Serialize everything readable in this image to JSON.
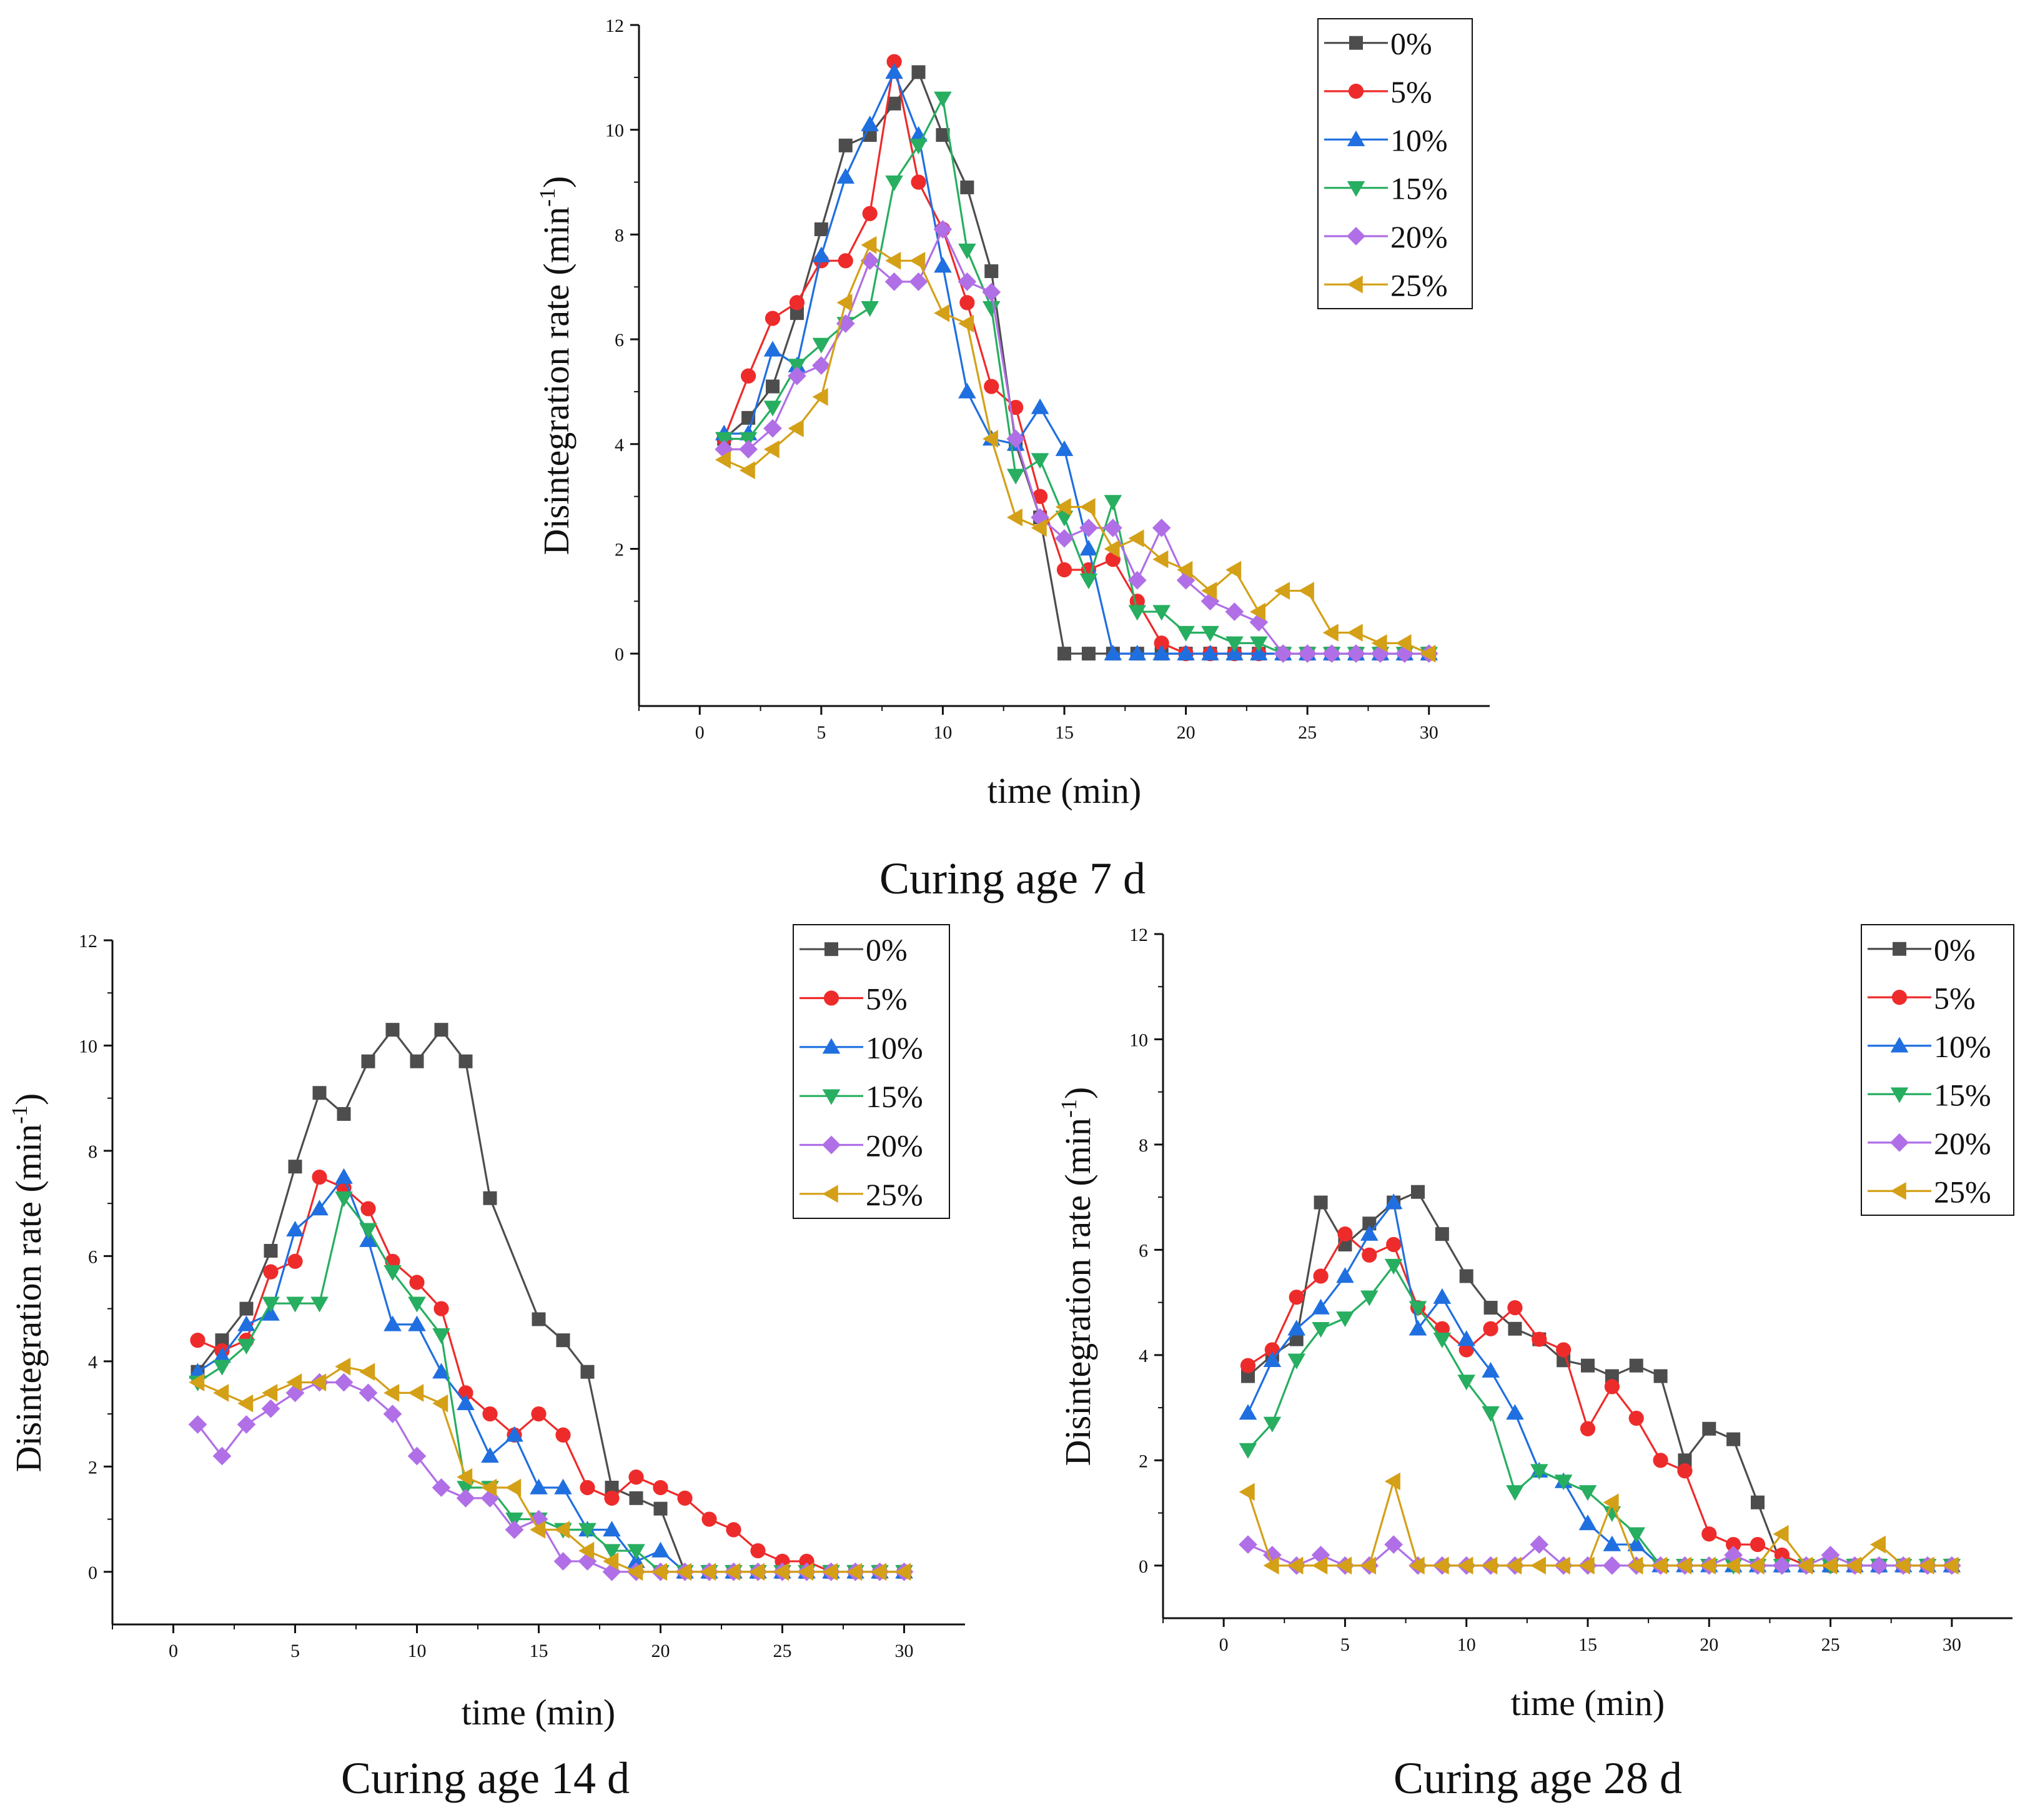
{
  "figure": {
    "colors": {
      "0%": "#4d4d4d",
      "5%": "#ee2b2b",
      "10%": "#1f6fe0",
      "15%": "#27ae60",
      "20%": "#b06fe6",
      "25%": "#d4a017"
    },
    "markers": {
      "0%": "square",
      "5%": "circle",
      "10%": "triangle-up",
      "15%": "triangle-down",
      "20%": "diamond",
      "25%": "triangle-left"
    }
  },
  "chart_data": [
    {
      "type": "line",
      "caption": "Curing age 7 d",
      "xlabel": "time (min)",
      "ylabel": "Disintegration rate (min",
      "ylabel_sup": "-1",
      "ylabel_end": ")",
      "xlim": [
        -2.5,
        32.5
      ],
      "ylim": [
        -1,
        12
      ],
      "xticks": [
        "0",
        "5",
        "10",
        "15",
        "20",
        "25",
        "30"
      ],
      "yticks": [
        "0",
        "2",
        "4",
        "6",
        "8",
        "10",
        "12"
      ],
      "x": [
        1,
        2,
        3,
        4,
        5,
        6,
        7,
        8,
        9,
        10,
        11,
        12,
        13,
        14,
        15,
        16,
        17,
        18,
        19,
        20,
        21,
        22,
        23,
        24,
        25,
        26,
        27,
        28,
        29,
        30
      ],
      "series": [
        {
          "name": "0%",
          "values": [
            4.1,
            4.5,
            5.1,
            6.5,
            8.1,
            9.7,
            9.9,
            10.5,
            11.1,
            9.9,
            8.9,
            7.3,
            4.0,
            2.6,
            0,
            0,
            0,
            0,
            0,
            0,
            0,
            0,
            0,
            0,
            0,
            0,
            0,
            0,
            0,
            0
          ]
        },
        {
          "name": "5%",
          "values": [
            4.1,
            5.3,
            6.4,
            6.7,
            7.5,
            7.5,
            8.4,
            11.3,
            9.0,
            8.1,
            6.7,
            5.1,
            4.7,
            3.0,
            1.6,
            1.6,
            1.8,
            1.0,
            0.2,
            0,
            0,
            0,
            0,
            0,
            0,
            0,
            0,
            0,
            0,
            0
          ]
        },
        {
          "name": "10%",
          "values": [
            4.2,
            4.2,
            5.8,
            5.5,
            7.6,
            9.1,
            10.1,
            11.1,
            9.9,
            7.4,
            5.0,
            4.1,
            4.0,
            4.7,
            3.9,
            2.0,
            0,
            0,
            0,
            0,
            0,
            0,
            0,
            0,
            0,
            0,
            0,
            0,
            0,
            0
          ]
        },
        {
          "name": "15%",
          "values": [
            4.1,
            4.1,
            4.7,
            5.5,
            5.9,
            6.3,
            6.6,
            9.0,
            9.7,
            10.6,
            7.7,
            6.6,
            3.4,
            3.7,
            2.6,
            1.4,
            2.9,
            0.8,
            0.8,
            0.4,
            0.4,
            0.2,
            0.2,
            0,
            0,
            0,
            0,
            0,
            0,
            0
          ]
        },
        {
          "name": "20%",
          "values": [
            3.9,
            3.9,
            4.3,
            5.3,
            5.5,
            6.3,
            7.5,
            7.1,
            7.1,
            8.1,
            7.1,
            6.9,
            4.1,
            2.6,
            2.2,
            2.4,
            2.4,
            1.4,
            2.4,
            1.4,
            1.0,
            0.8,
            0.6,
            0,
            0,
            0,
            0,
            0,
            0,
            0
          ]
        },
        {
          "name": "25%",
          "values": [
            3.7,
            3.5,
            3.9,
            4.3,
            4.9,
            6.7,
            7.8,
            7.5,
            7.5,
            6.5,
            6.3,
            4.1,
            2.6,
            2.4,
            2.8,
            2.8,
            2.0,
            2.2,
            1.8,
            1.6,
            1.2,
            1.6,
            0.8,
            1.2,
            1.2,
            0.4,
            0.4,
            0.2,
            0.2,
            0
          ]
        }
      ],
      "legend": [
        "0%",
        "5%",
        "10%",
        "15%",
        "20%",
        "25%"
      ],
      "legend_position": "top-right"
    },
    {
      "type": "line",
      "caption": "Curing age 14 d",
      "xlabel": "time (min)",
      "ylabel": "Disintegration rate (min",
      "ylabel_sup": "-1",
      "ylabel_end": ")",
      "xlim": [
        -2.5,
        32.5
      ],
      "ylim": [
        -1,
        12
      ],
      "xticks": [
        "0",
        "5",
        "10",
        "15",
        "20",
        "25",
        "30"
      ],
      "yticks": [
        "0",
        "2",
        "4",
        "6",
        "8",
        "10",
        "12"
      ],
      "x": [
        1,
        2,
        3,
        4,
        5,
        6,
        7,
        8,
        9,
        10,
        11,
        12,
        13,
        14,
        15,
        16,
        17,
        18,
        19,
        20,
        21,
        22,
        23,
        24,
        25,
        26,
        27,
        28,
        29,
        30
      ],
      "series": [
        {
          "name": "0%",
          "values": [
            3.8,
            4.4,
            5.0,
            6.1,
            7.7,
            9.1,
            8.7,
            9.7,
            10.3,
            9.7,
            10.3,
            9.7,
            7.1,
            null,
            4.8,
            4.4,
            3.8,
            1.6,
            1.4,
            1.2,
            0,
            0,
            0,
            0,
            0,
            0,
            0,
            0,
            0,
            0
          ]
        },
        {
          "name": "5%",
          "values": [
            4.4,
            4.2,
            4.4,
            5.7,
            5.9,
            7.5,
            7.3,
            6.9,
            5.9,
            5.5,
            5.0,
            3.4,
            3.0,
            2.6,
            3.0,
            2.6,
            1.6,
            1.4,
            1.8,
            1.6,
            1.4,
            1.0,
            0.8,
            0.4,
            0.2,
            0.2,
            0,
            0,
            0,
            0
          ]
        },
        {
          "name": "10%",
          "values": [
            3.8,
            4.1,
            4.7,
            4.9,
            6.5,
            6.9,
            7.5,
            6.3,
            4.7,
            4.7,
            3.8,
            3.2,
            2.2,
            2.6,
            1.6,
            1.6,
            0.8,
            0.8,
            0.2,
            0.4,
            0,
            0,
            0,
            0,
            0,
            0,
            0,
            0,
            0,
            0
          ]
        },
        {
          "name": "15%",
          "values": [
            3.6,
            3.9,
            4.3,
            5.1,
            5.1,
            5.1,
            7.1,
            6.5,
            5.7,
            5.1,
            4.5,
            1.6,
            1.6,
            1.0,
            1.0,
            0.8,
            0.8,
            0.4,
            0.4,
            0,
            0,
            0,
            0,
            0,
            0,
            0,
            0,
            0,
            0,
            0
          ]
        },
        {
          "name": "20%",
          "values": [
            2.8,
            2.2,
            2.8,
            3.1,
            3.4,
            3.6,
            3.6,
            3.4,
            3.0,
            2.2,
            1.6,
            1.4,
            1.4,
            0.8,
            1.0,
            0.2,
            0.2,
            0,
            0,
            0,
            0,
            0,
            0,
            0,
            0,
            0,
            0,
            0,
            0,
            0
          ]
        },
        {
          "name": "25%",
          "values": [
            3.6,
            3.4,
            3.2,
            3.4,
            3.6,
            3.6,
            3.9,
            3.8,
            3.4,
            3.4,
            3.2,
            1.8,
            1.6,
            1.6,
            0.8,
            0.8,
            0.4,
            0.2,
            0,
            0,
            0,
            0,
            0,
            0,
            0,
            0,
            0,
            0,
            0,
            0
          ]
        }
      ],
      "legend": [
        "0%",
        "5%",
        "10%",
        "15%",
        "20%",
        "25%"
      ],
      "legend_position": "top-right"
    },
    {
      "type": "line",
      "caption": "Curing age 28 d",
      "xlabel": "time (min)",
      "ylabel": "Disintegration rate (min",
      "ylabel_sup": "-1",
      "ylabel_end": ")",
      "xlim": [
        -2.5,
        32.5
      ],
      "ylim": [
        -1,
        12
      ],
      "xticks": [
        "0",
        "5",
        "10",
        "15",
        "20",
        "25",
        "30"
      ],
      "yticks": [
        "0",
        "2",
        "4",
        "6",
        "8",
        "10",
        "12"
      ],
      "x": [
        1,
        2,
        3,
        4,
        5,
        6,
        7,
        8,
        9,
        10,
        11,
        12,
        13,
        14,
        15,
        16,
        17,
        18,
        19,
        20,
        21,
        22,
        23,
        24,
        25,
        26,
        27,
        28,
        29,
        30
      ],
      "series": [
        {
          "name": "0%",
          "values": [
            3.6,
            4.0,
            4.3,
            6.9,
            6.1,
            6.5,
            6.9,
            7.1,
            6.3,
            5.5,
            4.9,
            4.5,
            4.3,
            3.9,
            3.8,
            3.6,
            3.8,
            3.6,
            2.0,
            2.6,
            2.4,
            1.2,
            0,
            0,
            0,
            0,
            0,
            0,
            0,
            0
          ]
        },
        {
          "name": "5%",
          "values": [
            3.8,
            4.1,
            5.1,
            5.5,
            6.3,
            5.9,
            6.1,
            4.9,
            4.5,
            4.1,
            4.5,
            4.9,
            4.3,
            4.1,
            2.6,
            3.4,
            2.8,
            2.0,
            1.8,
            0.6,
            0.4,
            0.4,
            0.2,
            0,
            0,
            0,
            0,
            0,
            0,
            0
          ]
        },
        {
          "name": "10%",
          "values": [
            2.9,
            3.9,
            4.5,
            4.9,
            5.5,
            6.3,
            6.9,
            4.5,
            5.1,
            4.3,
            3.7,
            2.9,
            1.8,
            1.6,
            0.8,
            0.4,
            0.4,
            0,
            0,
            0,
            0,
            0,
            0,
            0,
            0,
            0,
            0,
            0,
            0,
            0
          ]
        },
        {
          "name": "15%",
          "values": [
            2.2,
            2.7,
            3.9,
            4.5,
            4.7,
            5.1,
            5.7,
            4.9,
            4.3,
            3.5,
            2.9,
            1.4,
            1.8,
            1.6,
            1.4,
            1.0,
            0.6,
            0,
            0,
            0,
            0,
            0,
            0,
            0,
            0,
            0,
            0,
            0,
            0,
            0
          ]
        },
        {
          "name": "20%",
          "values": [
            0.4,
            0.2,
            0,
            0.2,
            0,
            0,
            0.4,
            0,
            0,
            0,
            0,
            0,
            0.4,
            0,
            0,
            0,
            0,
            0,
            0,
            0,
            0.2,
            0,
            0,
            0,
            0.2,
            0,
            0,
            0,
            0,
            0
          ]
        },
        {
          "name": "25%",
          "values": [
            1.4,
            0,
            0,
            0,
            0,
            0,
            1.6,
            0,
            0,
            0,
            0,
            0,
            0,
            0,
            0,
            1.2,
            0,
            0,
            0,
            0,
            0,
            0,
            0.6,
            0,
            0,
            0,
            0.4,
            0,
            0,
            0
          ]
        }
      ],
      "legend": [
        "0%",
        "5%",
        "10%",
        "15%",
        "20%",
        "25%"
      ],
      "legend_position": "top-right"
    }
  ]
}
